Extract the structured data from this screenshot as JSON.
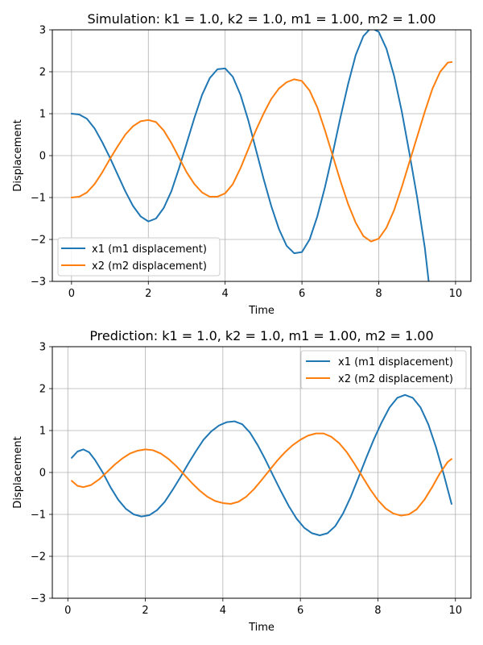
{
  "chart_data": [
    {
      "type": "line",
      "title": "Simulation: k1 = 1.0, k2 = 1.0, m1 = 1.00, m2 = 1.00",
      "xlabel": "Time",
      "ylabel": "Displacement",
      "xlim": [
        -0.5,
        10.4
      ],
      "ylim": [
        -3,
        3
      ],
      "xticks": [
        "0",
        "2",
        "4",
        "6",
        "8",
        "10"
      ],
      "yticks": [
        "−3",
        "−2",
        "−1",
        "0",
        "1",
        "2",
        "3"
      ],
      "grid": true,
      "legend_position": "lower-left",
      "series": [
        {
          "name": "x1 (m1 displacement)",
          "color": "#1f77b4",
          "points": [
            [
              0,
              1.0
            ],
            [
              0.2,
              0.98
            ],
            [
              0.4,
              0.88
            ],
            [
              0.6,
              0.65
            ],
            [
              0.8,
              0.32
            ],
            [
              1.0,
              -0.05
            ],
            [
              1.2,
              -0.45
            ],
            [
              1.4,
              -0.85
            ],
            [
              1.6,
              -1.2
            ],
            [
              1.8,
              -1.45
            ],
            [
              2.0,
              -1.57
            ],
            [
              2.2,
              -1.5
            ],
            [
              2.4,
              -1.25
            ],
            [
              2.6,
              -0.85
            ],
            [
              2.8,
              -0.3
            ],
            [
              3.0,
              0.3
            ],
            [
              3.2,
              0.9
            ],
            [
              3.4,
              1.45
            ],
            [
              3.6,
              1.85
            ],
            [
              3.8,
              2.06
            ],
            [
              4.0,
              2.08
            ],
            [
              4.2,
              1.88
            ],
            [
              4.4,
              1.45
            ],
            [
              4.6,
              0.85
            ],
            [
              4.8,
              0.15
            ],
            [
              5.0,
              -0.55
            ],
            [
              5.2,
              -1.2
            ],
            [
              5.4,
              -1.75
            ],
            [
              5.6,
              -2.15
            ],
            [
              5.8,
              -2.33
            ],
            [
              6.0,
              -2.3
            ],
            [
              6.2,
              -2.0
            ],
            [
              6.4,
              -1.45
            ],
            [
              6.6,
              -0.75
            ],
            [
              6.8,
              0.05
            ],
            [
              7.0,
              0.9
            ],
            [
              7.2,
              1.7
            ],
            [
              7.4,
              2.4
            ],
            [
              7.6,
              2.85
            ],
            [
              7.8,
              3.05
            ],
            [
              8.0,
              2.95
            ],
            [
              8.2,
              2.55
            ],
            [
              8.4,
              1.9
            ],
            [
              8.6,
              1.05
            ],
            [
              8.8,
              0.05
            ],
            [
              9.0,
              -1.0
            ],
            [
              9.2,
              -2.2
            ],
            [
              9.3,
              -3.0
            ]
          ]
        },
        {
          "name": "x2 (m2 displacement)",
          "color": "#ff7f0e",
          "points": [
            [
              0,
              -1.0
            ],
            [
              0.2,
              -0.98
            ],
            [
              0.4,
              -0.88
            ],
            [
              0.6,
              -0.68
            ],
            [
              0.8,
              -0.4
            ],
            [
              1.0,
              -0.08
            ],
            [
              1.2,
              0.22
            ],
            [
              1.4,
              0.5
            ],
            [
              1.6,
              0.7
            ],
            [
              1.8,
              0.82
            ],
            [
              2.0,
              0.85
            ],
            [
              2.2,
              0.8
            ],
            [
              2.4,
              0.6
            ],
            [
              2.6,
              0.3
            ],
            [
              2.8,
              -0.05
            ],
            [
              3.0,
              -0.4
            ],
            [
              3.2,
              -0.68
            ],
            [
              3.4,
              -0.88
            ],
            [
              3.6,
              -0.98
            ],
            [
              3.8,
              -0.98
            ],
            [
              4.0,
              -0.9
            ],
            [
              4.2,
              -0.68
            ],
            [
              4.4,
              -0.3
            ],
            [
              4.6,
              0.15
            ],
            [
              4.8,
              0.6
            ],
            [
              5.0,
              1.0
            ],
            [
              5.2,
              1.35
            ],
            [
              5.4,
              1.6
            ],
            [
              5.6,
              1.75
            ],
            [
              5.8,
              1.82
            ],
            [
              6.0,
              1.78
            ],
            [
              6.2,
              1.55
            ],
            [
              6.4,
              1.15
            ],
            [
              6.6,
              0.6
            ],
            [
              6.8,
              0.0
            ],
            [
              7.0,
              -0.6
            ],
            [
              7.2,
              -1.15
            ],
            [
              7.4,
              -1.6
            ],
            [
              7.6,
              -1.92
            ],
            [
              7.8,
              -2.05
            ],
            [
              8.0,
              -1.98
            ],
            [
              8.2,
              -1.72
            ],
            [
              8.4,
              -1.3
            ],
            [
              8.6,
              -0.75
            ],
            [
              8.8,
              -0.15
            ],
            [
              9.0,
              0.45
            ],
            [
              9.2,
              1.05
            ],
            [
              9.4,
              1.6
            ],
            [
              9.6,
              2.0
            ],
            [
              9.8,
              2.22
            ],
            [
              9.9,
              2.23
            ]
          ]
        }
      ]
    },
    {
      "type": "line",
      "title": "Prediction: k1 = 1.0, k2 = 1.0, m1 = 1.00, m2 = 1.00",
      "xlabel": "Time",
      "ylabel": "Displacement",
      "xlim": [
        -0.4,
        10.4
      ],
      "ylim": [
        -3,
        3
      ],
      "xticks": [
        "0",
        "2",
        "4",
        "6",
        "8",
        "10"
      ],
      "yticks": [
        "−3",
        "−2",
        "−1",
        "0",
        "1",
        "2",
        "3"
      ],
      "grid": true,
      "legend_position": "upper-right",
      "series": [
        {
          "name": "x1 (m1 displacement)",
          "color": "#1f77b4",
          "points": [
            [
              0.1,
              0.35
            ],
            [
              0.25,
              0.5
            ],
            [
              0.4,
              0.55
            ],
            [
              0.55,
              0.48
            ],
            [
              0.7,
              0.3
            ],
            [
              0.9,
              0.0
            ],
            [
              1.1,
              -0.35
            ],
            [
              1.3,
              -0.65
            ],
            [
              1.5,
              -0.87
            ],
            [
              1.7,
              -1.0
            ],
            [
              1.9,
              -1.05
            ],
            [
              2.1,
              -1.02
            ],
            [
              2.3,
              -0.9
            ],
            [
              2.5,
              -0.7
            ],
            [
              2.7,
              -0.42
            ],
            [
              2.9,
              -0.12
            ],
            [
              3.1,
              0.2
            ],
            [
              3.3,
              0.5
            ],
            [
              3.5,
              0.78
            ],
            [
              3.7,
              0.98
            ],
            [
              3.9,
              1.12
            ],
            [
              4.1,
              1.2
            ],
            [
              4.3,
              1.22
            ],
            [
              4.5,
              1.15
            ],
            [
              4.7,
              0.95
            ],
            [
              4.9,
              0.65
            ],
            [
              5.1,
              0.3
            ],
            [
              5.3,
              -0.08
            ],
            [
              5.5,
              -0.45
            ],
            [
              5.7,
              -0.8
            ],
            [
              5.9,
              -1.1
            ],
            [
              6.1,
              -1.32
            ],
            [
              6.3,
              -1.45
            ],
            [
              6.5,
              -1.5
            ],
            [
              6.7,
              -1.45
            ],
            [
              6.9,
              -1.28
            ],
            [
              7.1,
              -0.98
            ],
            [
              7.3,
              -0.58
            ],
            [
              7.5,
              -0.12
            ],
            [
              7.7,
              0.35
            ],
            [
              7.9,
              0.8
            ],
            [
              8.1,
              1.2
            ],
            [
              8.3,
              1.55
            ],
            [
              8.5,
              1.78
            ],
            [
              8.7,
              1.85
            ],
            [
              8.9,
              1.78
            ],
            [
              9.1,
              1.55
            ],
            [
              9.3,
              1.15
            ],
            [
              9.5,
              0.6
            ],
            [
              9.7,
              -0.05
            ],
            [
              9.9,
              -0.75
            ]
          ]
        },
        {
          "name": "x2 (m2 displacement)",
          "color": "#ff7f0e",
          "points": [
            [
              0.1,
              -0.2
            ],
            [
              0.25,
              -0.32
            ],
            [
              0.4,
              -0.35
            ],
            [
              0.6,
              -0.3
            ],
            [
              0.8,
              -0.17
            ],
            [
              1.0,
              0.0
            ],
            [
              1.2,
              0.18
            ],
            [
              1.4,
              0.33
            ],
            [
              1.6,
              0.45
            ],
            [
              1.8,
              0.52
            ],
            [
              2.0,
              0.55
            ],
            [
              2.2,
              0.53
            ],
            [
              2.4,
              0.45
            ],
            [
              2.6,
              0.32
            ],
            [
              2.8,
              0.15
            ],
            [
              3.0,
              -0.05
            ],
            [
              3.2,
              -0.25
            ],
            [
              3.4,
              -0.43
            ],
            [
              3.6,
              -0.58
            ],
            [
              3.8,
              -0.68
            ],
            [
              4.0,
              -0.73
            ],
            [
              4.2,
              -0.75
            ],
            [
              4.4,
              -0.7
            ],
            [
              4.6,
              -0.58
            ],
            [
              4.8,
              -0.4
            ],
            [
              5.0,
              -0.18
            ],
            [
              5.2,
              0.05
            ],
            [
              5.4,
              0.28
            ],
            [
              5.6,
              0.48
            ],
            [
              5.8,
              0.65
            ],
            [
              6.0,
              0.78
            ],
            [
              6.2,
              0.88
            ],
            [
              6.4,
              0.93
            ],
            [
              6.6,
              0.93
            ],
            [
              6.8,
              0.85
            ],
            [
              7.0,
              0.7
            ],
            [
              7.2,
              0.48
            ],
            [
              7.4,
              0.2
            ],
            [
              7.6,
              -0.1
            ],
            [
              7.8,
              -0.4
            ],
            [
              8.0,
              -0.66
            ],
            [
              8.2,
              -0.86
            ],
            [
              8.4,
              -0.98
            ],
            [
              8.6,
              -1.03
            ],
            [
              8.8,
              -1.0
            ],
            [
              9.0,
              -0.88
            ],
            [
              9.2,
              -0.65
            ],
            [
              9.4,
              -0.35
            ],
            [
              9.6,
              -0.02
            ],
            [
              9.8,
              0.25
            ],
            [
              9.9,
              0.32
            ]
          ]
        }
      ]
    }
  ]
}
